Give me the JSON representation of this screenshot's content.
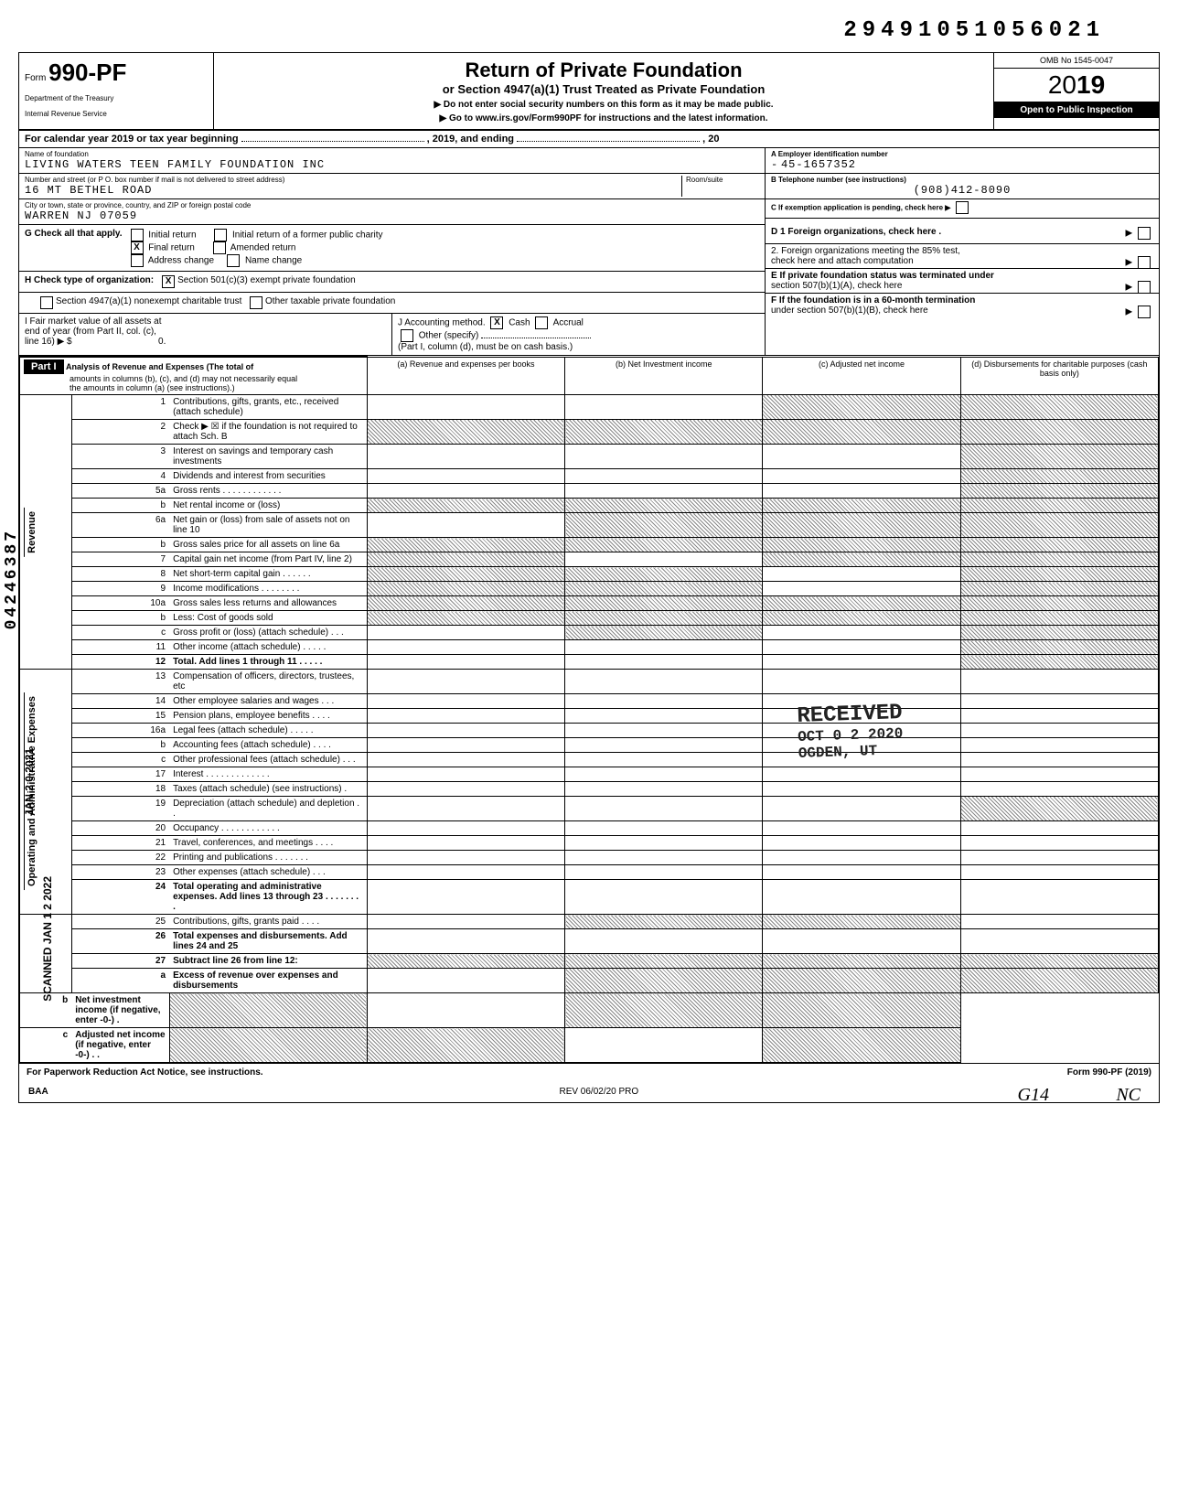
{
  "doc_number": "29491051056021",
  "form": {
    "prefix": "Form",
    "number": "990-PF",
    "dept": "Department of the Treasury",
    "irs": "Internal Revenue Service"
  },
  "header": {
    "title": "Return of Private Foundation",
    "subtitle": "or Section 4947(a)(1) Trust Treated as Private Foundation",
    "warn": "▶ Do not enter social security numbers on this form as it may be made public.",
    "goto": "▶ Go to www.irs.gov/Form990PF for instructions and the latest information."
  },
  "omb": "OMB No 1545-0047",
  "year": "2019",
  "inspection": "Open to Public Inspection",
  "cal_year_prefix": "For calendar year 2019 or tax year beginning",
  "cal_year_mid": ", 2019, and ending",
  "cal_year_end": ", 20",
  "labels": {
    "name_of_foundation": "Name of foundation",
    "number_street": "Number and street (or P O. box number if mail is not delivered to street address)",
    "room_suite": "Room/suite",
    "city": "City or town, state or province, country, and ZIP or foreign postal code",
    "ein": "A  Employer identification number",
    "phone": "B  Telephone number (see instructions)",
    "exemption": "C  If exemption application is pending, check here ▶"
  },
  "foundation": {
    "name": "LIVING WATERS TEEN FAMILY FOUNDATION INC",
    "street": "16 MT BETHEL ROAD",
    "city": "WARREN NJ 07059",
    "ein_prefix": "-",
    "ein": "45-1657352",
    "phone": "(908)412-8090"
  },
  "g_check": {
    "label": "G  Check all that apply.",
    "initial_return": "Initial return",
    "final_return": "Final return",
    "address_change": "Address change",
    "initial_former": "Initial return of a former public charity",
    "amended": "Amended return",
    "name_change": "Name change"
  },
  "d_check": {
    "d1": "D  1 Foreign organizations, check here .",
    "d2a": "2. Foreign organizations meeting the 85% test,",
    "d2b": "check here and attach computation"
  },
  "h_check": {
    "label": "H  Check type of organization:",
    "x1": "Section 501(c)(3) exempt private foundation",
    "sec4947": "Section 4947(a)(1) nonexempt charitable trust",
    "other_tax": "Other taxable private foundation"
  },
  "e_check": {
    "e1": "E  If private foundation status was terminated under",
    "e2": "section 507(b)(1)(A), check here"
  },
  "i_j": {
    "i_label": "I   Fair market value of all assets at",
    "i_line2": "end of year (from Part II, col. (c),",
    "i_line3": "line 16) ▶ $",
    "i_value": "0.",
    "j_label": "J  Accounting method.",
    "j_cash": "Cash",
    "j_accrual": "Accrual",
    "j_other": "Other (specify)",
    "j_note": "(Part I, column (d), must be on cash basis.)"
  },
  "f_check": {
    "f1": "F  If the foundation is in a 60-month termination",
    "f2": "under section 507(b)(1)(B), check here"
  },
  "part1": {
    "label": "Part I",
    "desc1": "Analysis of Revenue and Expenses (The total of",
    "desc2": "amounts in columns (b), (c), and (d) may not necessarily equal",
    "desc3": "the amounts in column (a) (see instructions).)",
    "col_a": "(a) Revenue and expenses per books",
    "col_b": "(b) Net Investment income",
    "col_c": "(c) Adjusted net income",
    "col_d": "(d) Disbursements for charitable purposes (cash basis only)"
  },
  "sections": {
    "revenue": "Revenue",
    "operating": "Operating and Administrative Expenses"
  },
  "rows": [
    {
      "n": "1",
      "t": "Contributions, gifts, grants, etc., received (attach schedule)",
      "shade_b": false,
      "shade_c": true,
      "shade_d": true
    },
    {
      "n": "2",
      "t": "Check ▶ ☒ if the foundation is not required to attach Sch. B",
      "shade_a": true,
      "shade_b": true,
      "shade_c": true,
      "shade_d": true
    },
    {
      "n": "3",
      "t": "Interest on savings and temporary cash investments",
      "shade_d": true
    },
    {
      "n": "4",
      "t": "Dividends and interest from securities",
      "shade_d": true
    },
    {
      "n": "5a",
      "t": "Gross rents . . . . . . . . . . . .",
      "shade_d": true
    },
    {
      "n": "b",
      "t": "Net rental income or (loss)",
      "shade_a": true,
      "shade_b": true,
      "shade_c": true,
      "shade_d": true
    },
    {
      "n": "6a",
      "t": "Net gain or (loss) from sale of assets not on line 10",
      "shade_b": true,
      "shade_c": true,
      "shade_d": true
    },
    {
      "n": "b",
      "t": "Gross sales price for all assets on line 6a",
      "shade_a": true,
      "shade_b": true,
      "shade_c": true,
      "shade_d": true
    },
    {
      "n": "7",
      "t": "Capital gain net income (from Part IV, line 2)",
      "shade_a": true,
      "shade_c": true,
      "shade_d": true
    },
    {
      "n": "8",
      "t": "Net short-term capital gain . . . . . .",
      "shade_a": true,
      "shade_b": true,
      "shade_d": true
    },
    {
      "n": "9",
      "t": "Income modifications . . . . . . . .",
      "shade_a": true,
      "shade_b": true,
      "shade_d": true
    },
    {
      "n": "10a",
      "t": "Gross sales less returns and allowances",
      "shade_a": true,
      "shade_b": true,
      "shade_c": true,
      "shade_d": true
    },
    {
      "n": "b",
      "t": "Less: Cost of goods sold",
      "shade_a": true,
      "shade_b": true,
      "shade_c": true,
      "shade_d": true
    },
    {
      "n": "c",
      "t": "Gross profit or (loss) (attach schedule) . . .",
      "shade_b": true,
      "shade_d": true
    },
    {
      "n": "11",
      "t": "Other income (attach schedule) . . . . .",
      "shade_d": true
    },
    {
      "n": "12",
      "t": "Total. Add lines 1 through 11 . . . . .",
      "bold": true,
      "shade_d": true
    },
    {
      "n": "13",
      "t": "Compensation of officers, directors, trustees, etc"
    },
    {
      "n": "14",
      "t": "Other employee salaries and wages . . ."
    },
    {
      "n": "15",
      "t": "Pension plans, employee benefits . . . ."
    },
    {
      "n": "16a",
      "t": "Legal fees (attach schedule) . . . . ."
    },
    {
      "n": "b",
      "t": "Accounting fees (attach schedule) . . . ."
    },
    {
      "n": "c",
      "t": "Other professional fees (attach schedule) . . ."
    },
    {
      "n": "17",
      "t": "Interest . . . . . . . . . . . . ."
    },
    {
      "n": "18",
      "t": "Taxes (attach schedule) (see instructions) ."
    },
    {
      "n": "19",
      "t": "Depreciation (attach schedule) and depletion . .",
      "shade_d": true
    },
    {
      "n": "20",
      "t": "Occupancy . . . . . . . . . . . ."
    },
    {
      "n": "21",
      "t": "Travel, conferences, and meetings . . . ."
    },
    {
      "n": "22",
      "t": "Printing and publications . . . . . . ."
    },
    {
      "n": "23",
      "t": "Other expenses (attach schedule) . . ."
    },
    {
      "n": "24",
      "t": "Total operating and administrative expenses. Add lines 13 through 23 . . . . . . . .",
      "bold": true
    },
    {
      "n": "25",
      "t": "Contributions, gifts, grants paid . . . .",
      "shade_b": true,
      "shade_c": true
    },
    {
      "n": "26",
      "t": "Total expenses and disbursements. Add lines 24 and 25",
      "bold": true
    },
    {
      "n": "27",
      "t": "Subtract line 26 from line 12:",
      "bold": true,
      "shade_a": true,
      "shade_b": true,
      "shade_c": true,
      "shade_d": true
    },
    {
      "n": "a",
      "t": "Excess of revenue over expenses and disbursements",
      "bold": true,
      "shade_b": true,
      "shade_c": true,
      "shade_d": true
    },
    {
      "n": "b",
      "t": "Net investment income (if negative, enter -0-) .",
      "bold": true,
      "shade_a": true,
      "shade_c": true,
      "shade_d": true
    },
    {
      "n": "c",
      "t": "Adjusted net income (if negative, enter -0-) . .",
      "bold": true,
      "shade_a": true,
      "shade_b": true,
      "shade_d": true
    }
  ],
  "footer": {
    "paperwork": "For Paperwork Reduction Act Notice, see instructions.",
    "form_ref": "Form 990-PF (2019)",
    "baa": "BAA",
    "rev": "REV 06/02/20 PRO"
  },
  "stamps": {
    "received": "RECEIVED",
    "date": "OCT 0 2 2020",
    "ogden": "OGDEN, UT",
    "left_number": "04246387",
    "left_date1": "JAN 2 0 2021",
    "left_date2": "SCANNED JAN 1 2 2022",
    "handwritten_bottom": "G14",
    "handwritten_right": "NC"
  }
}
